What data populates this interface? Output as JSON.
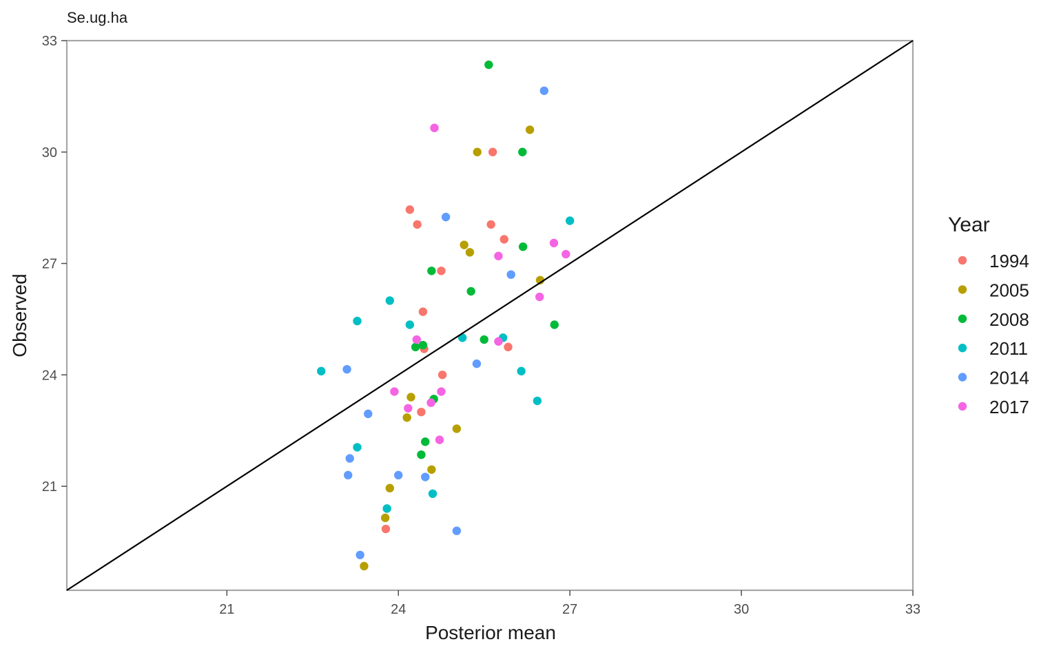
{
  "chart_data": {
    "type": "scatter",
    "title": "Se.ug.ha",
    "xlabel": "Posterior mean",
    "ylabel": "Observed",
    "xlim": [
      18.2,
      33
    ],
    "ylim": [
      18.2,
      33
    ],
    "xticks": [
      "21",
      "24",
      "27",
      "30",
      "33"
    ],
    "yticks": [
      "21",
      "24",
      "27",
      "30",
      "33"
    ],
    "grid": false,
    "reference_line": "y = x",
    "legend": {
      "title": "Year",
      "placement": "right"
    },
    "series": [
      {
        "name": "1994",
        "color": "#F8766D",
        "points": [
          [
            24.2,
            28.45
          ],
          [
            24.33,
            28.05
          ],
          [
            25.65,
            30.0
          ],
          [
            25.62,
            28.05
          ],
          [
            25.85,
            27.65
          ],
          [
            24.75,
            26.8
          ],
          [
            24.43,
            25.7
          ],
          [
            24.45,
            24.7
          ],
          [
            25.92,
            24.75
          ],
          [
            24.77,
            24.0
          ],
          [
            24.4,
            23.0
          ],
          [
            23.78,
            19.85
          ]
        ]
      },
      {
        "name": "2005",
        "color": "#B79F00",
        "points": [
          [
            25.38,
            30.0
          ],
          [
            26.3,
            30.6
          ],
          [
            25.15,
            27.5
          ],
          [
            25.25,
            27.3
          ],
          [
            26.48,
            26.55
          ],
          [
            24.22,
            23.4
          ],
          [
            24.15,
            22.85
          ],
          [
            25.02,
            22.55
          ],
          [
            24.58,
            21.45
          ],
          [
            23.85,
            20.95
          ],
          [
            23.77,
            20.15
          ],
          [
            23.4,
            18.85
          ]
        ]
      },
      {
        "name": "2008",
        "color": "#00BA38",
        "points": [
          [
            25.58,
            32.35
          ],
          [
            26.17,
            30.0
          ],
          [
            26.18,
            27.45
          ],
          [
            24.58,
            26.8
          ],
          [
            25.27,
            26.25
          ],
          [
            26.73,
            25.35
          ],
          [
            25.5,
            24.95
          ],
          [
            24.43,
            24.8
          ],
          [
            24.3,
            24.75
          ],
          [
            24.62,
            23.35
          ],
          [
            24.47,
            22.2
          ],
          [
            24.4,
            21.85
          ]
        ]
      },
      {
        "name": "2011",
        "color": "#00BFC4",
        "points": [
          [
            27.0,
            28.15
          ],
          [
            23.85,
            26.0
          ],
          [
            23.28,
            25.45
          ],
          [
            24.2,
            25.35
          ],
          [
            25.12,
            25.0
          ],
          [
            25.83,
            25.0
          ],
          [
            22.65,
            24.1
          ],
          [
            26.15,
            24.1
          ],
          [
            26.43,
            23.3
          ],
          [
            23.28,
            22.05
          ],
          [
            24.6,
            20.8
          ],
          [
            23.8,
            20.4
          ]
        ]
      },
      {
        "name": "2014",
        "color": "#619CFF",
        "points": [
          [
            26.55,
            31.65
          ],
          [
            24.83,
            28.25
          ],
          [
            25.97,
            26.7
          ],
          [
            25.37,
            24.3
          ],
          [
            23.1,
            24.15
          ],
          [
            23.47,
            22.95
          ],
          [
            23.15,
            21.75
          ],
          [
            23.12,
            21.3
          ],
          [
            24.0,
            21.3
          ],
          [
            24.47,
            21.25
          ],
          [
            25.02,
            19.8
          ],
          [
            23.33,
            19.15
          ]
        ]
      },
      {
        "name": "2017",
        "color": "#F564E3",
        "points": [
          [
            24.63,
            30.65
          ],
          [
            26.72,
            27.55
          ],
          [
            26.93,
            27.25
          ],
          [
            25.75,
            27.2
          ],
          [
            26.47,
            26.1
          ],
          [
            24.32,
            24.95
          ],
          [
            25.75,
            24.9
          ],
          [
            23.93,
            23.55
          ],
          [
            24.75,
            23.55
          ],
          [
            24.57,
            23.25
          ],
          [
            24.17,
            23.1
          ],
          [
            24.72,
            22.25
          ]
        ]
      }
    ]
  }
}
